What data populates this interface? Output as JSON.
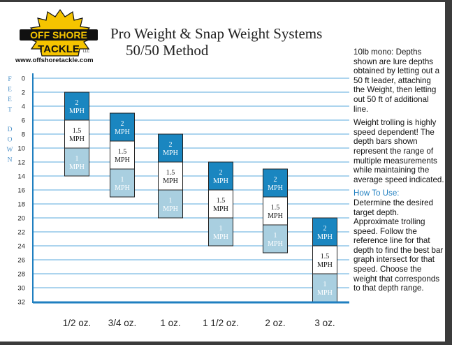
{
  "header": {
    "title": "Pro Weight & Snap Weight Systems",
    "subtitle": "50/50 Method",
    "logo": {
      "line1": "OFF SHORE",
      "line2": "TACKLE",
      "llc": "LLC",
      "url": "www.offshoretackle.com"
    }
  },
  "notes": {
    "intro": "10lb mono: Depths shown are lure depths obtained by letting out a 50 ft leader, attaching the Weight, then letting out 50 ft of additional line.",
    "speed": "Weight trolling is highly speed dependent! The depth bars shown represent the range of multiple measurements while maintaining the average speed indicated.",
    "howto_heading": "How To Use:",
    "howto": "Determine the desired target depth. Approximate trolling speed. Follow the reference line for that depth to find the best bar graph intersect for that speed. Choose the weight that corresponds to that depth range."
  },
  "colors": {
    "grid": "#5aa9dc",
    "axis": "#1f7fc0",
    "speed_2": "#1a86c0",
    "speed_15": "#ffffff",
    "speed_1": "#a9cfe0",
    "tick_text": "#222222",
    "axis_label": "#4a90c8"
  },
  "chart_data": {
    "type": "bar",
    "ylabel": "FEET DOWN",
    "ylim": [
      0,
      32
    ],
    "y_inverted": true,
    "y_ticks": [
      0,
      2,
      4,
      6,
      8,
      10,
      12,
      14,
      16,
      18,
      20,
      22,
      24,
      26,
      28,
      30,
      32
    ],
    "grid": "horizontal",
    "categories": [
      "1/2 oz.",
      "3/4 oz.",
      "1 oz.",
      "1 1/2 oz.",
      "2 oz.",
      "3 oz."
    ],
    "series": [
      {
        "name": "2 MPH",
        "label": [
          "2",
          "MPH"
        ],
        "ranges": [
          [
            2,
            6
          ],
          [
            5,
            9
          ],
          [
            8,
            12
          ],
          [
            12,
            16
          ],
          [
            13,
            17
          ],
          [
            20,
            24
          ]
        ]
      },
      {
        "name": "1.5 MPH",
        "label": [
          "1.5",
          "MPH"
        ],
        "ranges": [
          [
            6,
            10
          ],
          [
            9,
            13
          ],
          [
            12,
            16
          ],
          [
            16,
            20
          ],
          [
            17,
            21
          ],
          [
            24,
            28
          ]
        ]
      },
      {
        "name": "1 MPH",
        "label": [
          "1",
          "MPH"
        ],
        "ranges": [
          [
            10,
            14
          ],
          [
            13,
            17
          ],
          [
            16,
            20
          ],
          [
            20,
            24
          ],
          [
            21,
            25
          ],
          [
            28,
            32
          ]
        ]
      }
    ]
  }
}
